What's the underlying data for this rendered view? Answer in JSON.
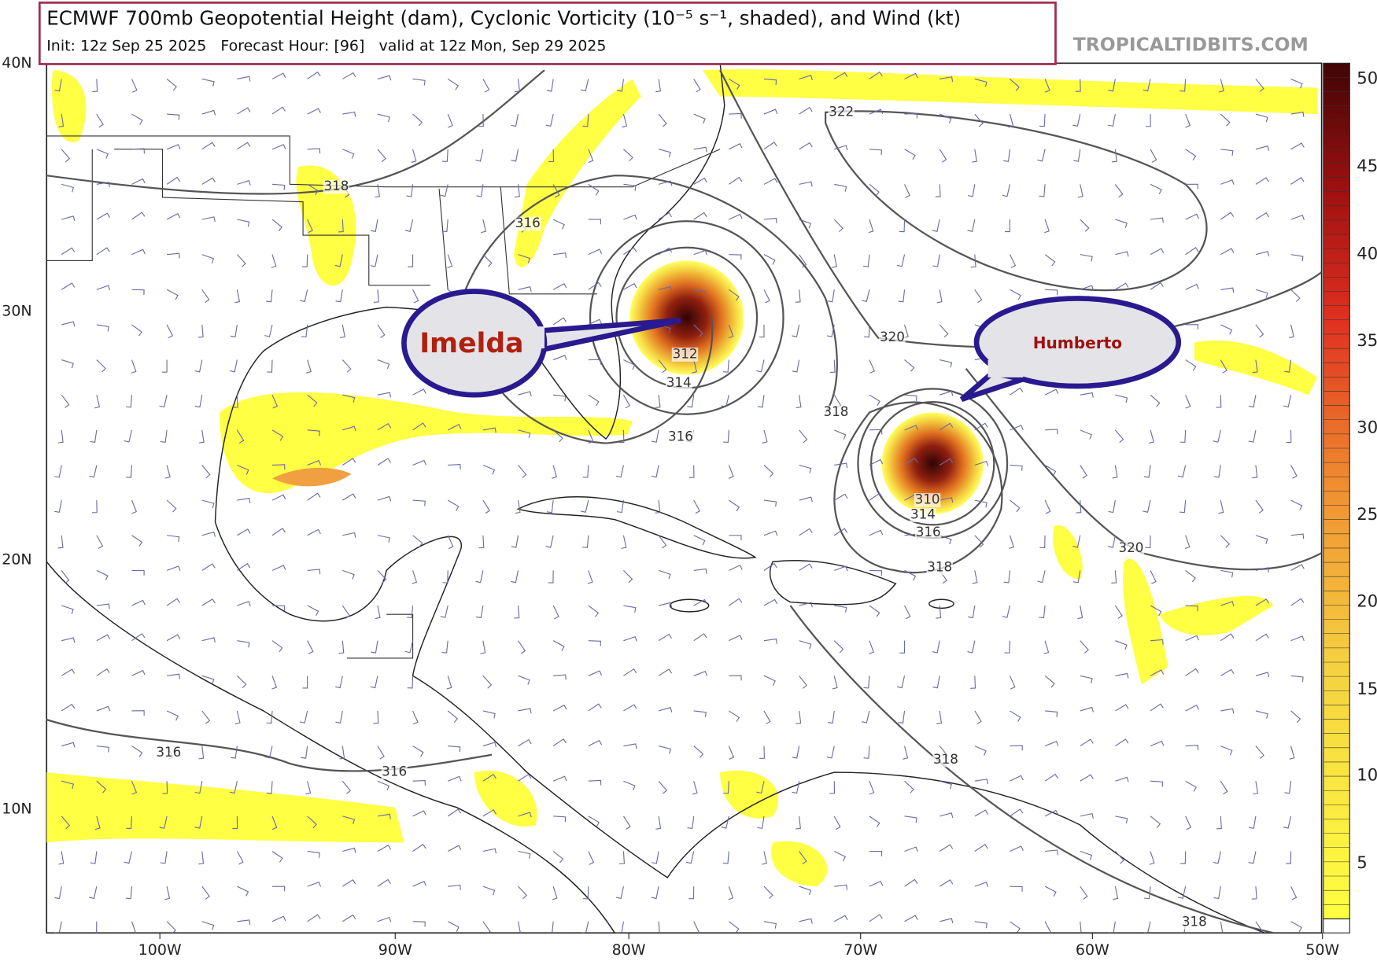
{
  "header": {
    "title": "ECMWF 700mb Geopotential Height (dam), Cyclonic Vorticity (10⁻⁵ s⁻¹, shaded), and Wind (kt)",
    "subtitle": "Init: 12z Sep 25 2025   Forecast Hour: [96]   valid at 12z Mon, Sep 29 2025",
    "watermark": "TROPICALTIDBITS.COM"
  },
  "map": {
    "lat_labels": [
      "40N",
      "30N",
      "20N",
      "10N"
    ],
    "lon_labels": [
      "100W",
      "90W",
      "80W",
      "70W",
      "60W",
      "50W"
    ],
    "contour_labels": [
      322,
      318,
      316,
      312,
      314,
      316,
      320,
      318,
      310,
      314,
      316,
      318,
      320,
      316,
      316,
      318,
      318
    ]
  },
  "colorbar": {
    "ticks": [
      50,
      45,
      40,
      35,
      30,
      25,
      20,
      15,
      10,
      5
    ]
  },
  "callouts": [
    {
      "label": "Humberto"
    },
    {
      "label": "Imelda"
    }
  ]
}
